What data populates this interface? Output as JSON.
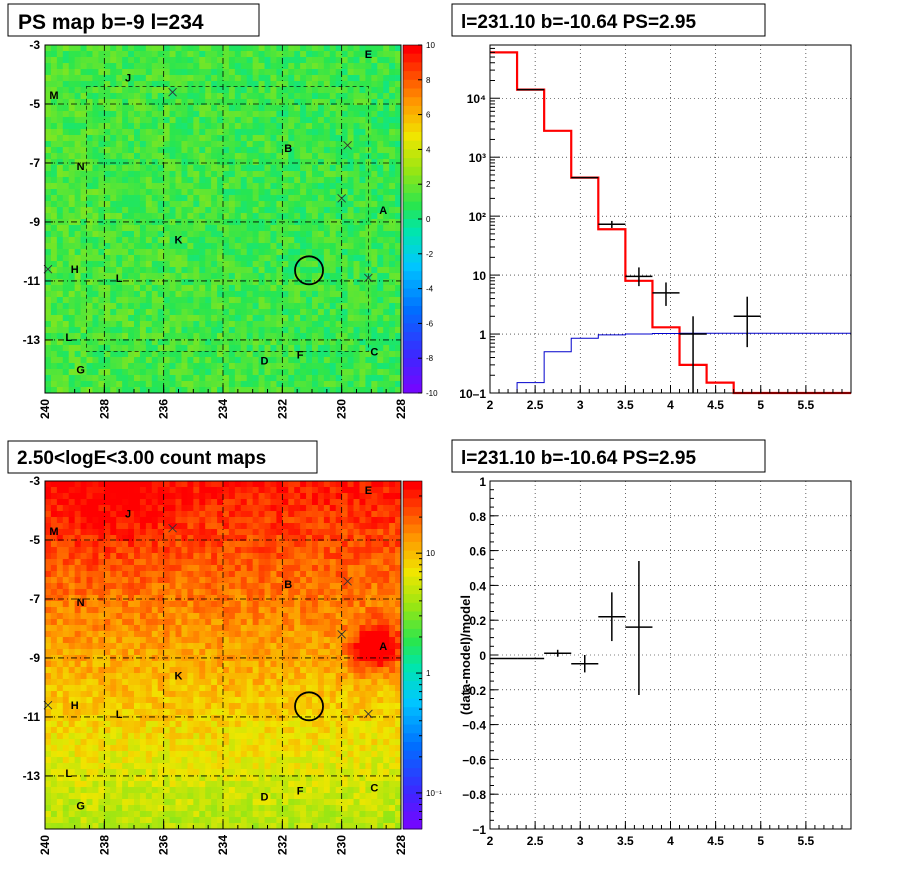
{
  "chart_data": [
    {
      "type": "heatmap",
      "title": "PS map b=-9 l=234",
      "x_ticks": [
        "240",
        "238",
        "236",
        "234",
        "232",
        "230",
        "228"
      ],
      "y_ticks": [
        "-3",
        "-5",
        "-7",
        "-9",
        "-11",
        "-13"
      ],
      "xlim": [
        240,
        228
      ],
      "ylim": [
        -3,
        -14.8
      ],
      "colorbar": {
        "range": [
          -10,
          10
        ],
        "ticks": [
          "10",
          "8",
          "6",
          "4",
          "2",
          "0",
          "-2",
          "-4",
          "-6",
          "-8",
          "-10"
        ]
      },
      "source_labels": [
        {
          "text": "E",
          "l": 229.1,
          "b": -3.3
        },
        {
          "text": "J",
          "l": 237.2,
          "b": -4.1
        },
        {
          "text": "M",
          "l": 239.7,
          "b": -4.7
        },
        {
          "text": "B",
          "l": 231.8,
          "b": -6.5
        },
        {
          "text": "N",
          "l": 238.8,
          "b": -7.1
        },
        {
          "text": "A",
          "l": 228.6,
          "b": -8.6
        },
        {
          "text": "K",
          "l": 235.5,
          "b": -9.6
        },
        {
          "text": "H",
          "l": 239.0,
          "b": -10.6
        },
        {
          "text": "L",
          "l": 237.5,
          "b": -10.9
        },
        {
          "text": "L",
          "l": 239.2,
          "b": -12.9
        },
        {
          "text": "G",
          "l": 238.8,
          "b": -14.0
        },
        {
          "text": "D",
          "l": 232.6,
          "b": -13.7
        },
        {
          "text": "F",
          "l": 231.4,
          "b": -13.5
        },
        {
          "text": "C",
          "l": 228.9,
          "b": -13.4
        }
      ]
    },
    {
      "type": "line",
      "title": "l=231.10 b=-10.64 PS=2.95",
      "x_ticks": [
        "2",
        "2.5",
        "3",
        "3.5",
        "4",
        "4.5",
        "5",
        "5.5"
      ],
      "y_ticks": [
        "10–1",
        "1",
        "10",
        "10²",
        "10³",
        "10⁴"
      ],
      "xlim": [
        2,
        6
      ],
      "ylim": [
        0.1,
        80000
      ],
      "y_scale": "log",
      "grid": true,
      "series": [
        {
          "color": "#ff0000",
          "bins": [
            2.0,
            2.3,
            2.6,
            2.9,
            3.2,
            3.5,
            3.8,
            4.1,
            4.4,
            4.7,
            5.0,
            6.0
          ],
          "values": [
            60000,
            14000,
            2800,
            450,
            60,
            8,
            1.3,
            0.3,
            0.15,
            0.1,
            0.1
          ]
        },
        {
          "color": "#0000cc",
          "bins": [
            2.0,
            2.3,
            2.6,
            2.9,
            3.2,
            3.5,
            3.8,
            4.1,
            4.4,
            4.7,
            5.0,
            6.0
          ],
          "values": [
            0.1,
            0.15,
            0.5,
            0.85,
            0.97,
            1.0,
            1.02,
            1.03,
            1.03,
            1.03,
            1.03
          ]
        }
      ],
      "points": [
        {
          "x": 2.45,
          "y": 14000,
          "xerr": 0.15,
          "ylo": 14000,
          "yhi": 14000
        },
        {
          "x": 3.05,
          "y": 450,
          "xerr": 0.15,
          "ylo": 450,
          "yhi": 450
        },
        {
          "x": 3.35,
          "y": 73,
          "xerr": 0.15,
          "ylo": 63,
          "yhi": 83
        },
        {
          "x": 3.65,
          "y": 9.5,
          "xerr": 0.15,
          "ylo": 6.5,
          "yhi": 13.5
        },
        {
          "x": 3.95,
          "y": 5,
          "xerr": 0.15,
          "ylo": 3,
          "yhi": 7.5
        },
        {
          "x": 4.25,
          "y": 1,
          "xerr": 0.15,
          "ylo": 0.1,
          "yhi": 2
        },
        {
          "x": 4.85,
          "y": 2,
          "xerr": 0.15,
          "ylo": 0.6,
          "yhi": 4.3
        }
      ]
    },
    {
      "type": "heatmap",
      "title": "2.50<logE<3.00 count maps",
      "x_ticks": [
        "240",
        "238",
        "236",
        "234",
        "232",
        "230",
        "228"
      ],
      "y_ticks": [
        "-3",
        "-5",
        "-7",
        "-9",
        "-11",
        "-13"
      ],
      "xlim": [
        240,
        228
      ],
      "ylim": [
        -3,
        -14.8
      ],
      "colorbar": {
        "scale": "log",
        "range": [
          0.05,
          40
        ],
        "ticks": [
          "10",
          "1",
          "10⁻¹"
        ]
      },
      "source_labels": [
        {
          "text": "E",
          "l": 229.1,
          "b": -3.3
        },
        {
          "text": "J",
          "l": 237.2,
          "b": -4.1
        },
        {
          "text": "M",
          "l": 239.7,
          "b": -4.7
        },
        {
          "text": "B",
          "l": 231.8,
          "b": -6.5
        },
        {
          "text": "N",
          "l": 238.8,
          "b": -7.1
        },
        {
          "text": "A",
          "l": 228.6,
          "b": -8.6
        },
        {
          "text": "K",
          "l": 235.5,
          "b": -9.6
        },
        {
          "text": "H",
          "l": 239.0,
          "b": -10.6
        },
        {
          "text": "L",
          "l": 237.5,
          "b": -10.9
        },
        {
          "text": "L",
          "l": 239.2,
          "b": -12.9
        },
        {
          "text": "G",
          "l": 238.8,
          "b": -14.0
        },
        {
          "text": "D",
          "l": 232.6,
          "b": -13.7
        },
        {
          "text": "F",
          "l": 231.4,
          "b": -13.5
        },
        {
          "text": "C",
          "l": 228.9,
          "b": -13.4
        }
      ]
    },
    {
      "type": "scatter",
      "title": "l=231.10 b=-10.64 PS=2.95",
      "ylabel": "(data-model)/model",
      "x_ticks": [
        "2",
        "2.5",
        "3",
        "3.5",
        "4",
        "4.5",
        "5",
        "5.5"
      ],
      "y_ticks": [
        "1",
        "0.8",
        "0.6",
        "0.4",
        "0.2",
        "0",
        "−0.2",
        "−0.4",
        "−0.6",
        "−0.8",
        "−1"
      ],
      "xlim": [
        2,
        6
      ],
      "ylim": [
        -1,
        1
      ],
      "grid": true,
      "points": [
        {
          "x": 2.15,
          "y": -0.02,
          "xerr": 0.15,
          "ylo": -0.02,
          "yhi": -0.02
        },
        {
          "x": 2.45,
          "y": -0.02,
          "xerr": 0.15,
          "ylo": -0.02,
          "yhi": -0.02
        },
        {
          "x": 2.75,
          "y": 0.01,
          "xerr": 0.15,
          "ylo": -0.01,
          "yhi": 0.03
        },
        {
          "x": 3.05,
          "y": -0.05,
          "xerr": 0.15,
          "ylo": -0.1,
          "yhi": 0.0
        },
        {
          "x": 3.35,
          "y": 0.22,
          "xerr": 0.15,
          "ylo": 0.08,
          "yhi": 0.36
        },
        {
          "x": 3.65,
          "y": 0.16,
          "xerr": 0.15,
          "ylo": -0.23,
          "yhi": 0.54
        }
      ]
    }
  ],
  "ps_center": {
    "l": 231.1,
    "b": -10.64
  },
  "crosses": [
    {
      "l": 235.7,
      "b": -4.6
    },
    {
      "l": 229.8,
      "b": -6.4
    },
    {
      "l": 230.0,
      "b": -8.2
    },
    {
      "l": 239.9,
      "b": -10.6
    },
    {
      "l": 229.1,
      "b": -10.9
    }
  ]
}
